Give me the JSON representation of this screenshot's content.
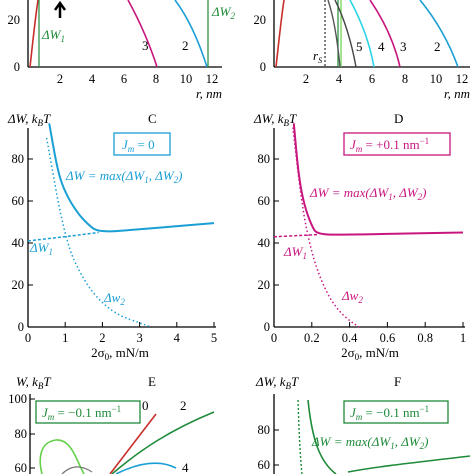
{
  "colors": {
    "cyan": "#1a9fd5",
    "magenta": "#c8167f",
    "green": "#1f8a3a",
    "lime": "#63d24a",
    "red": "#c82e2a",
    "darkgray": "#555555",
    "lightcyan": "#2ad4e6",
    "black": "#000000"
  },
  "top": {
    "left": {
      "y_tick_20": "20",
      "y_tick_0": "0",
      "x_ticks": [
        "2",
        "4",
        "6",
        "8",
        "10",
        "12"
      ],
      "x_label": "r, nm",
      "label_dw1": "ΔW",
      "label_dw1_sub": "1",
      "label_dw2": "ΔW",
      "label_dw2_sub": "2",
      "curve_3": "3",
      "curve_2": "2"
    },
    "right": {
      "y_tick_20": "20",
      "y_tick_0": "0",
      "x_ticks": [
        "2",
        "4",
        "6",
        "8",
        "10",
        "12"
      ],
      "x_label": "r, nm",
      "rs": "r",
      "rs_sub": "S",
      "curves": [
        "5",
        "4",
        "3",
        "2"
      ]
    }
  },
  "chart_data": [
    {
      "panel": "C",
      "type": "line",
      "ylabel": "ΔW, kBT",
      "xlabel": "2σ0, mN/m",
      "xlim": [
        0,
        5
      ],
      "ylim": [
        0,
        90
      ],
      "x_ticks": [
        "0",
        "1",
        "2",
        "3",
        "4",
        "5"
      ],
      "y_ticks": [
        "0",
        "20",
        "40",
        "60",
        "80"
      ],
      "legend": "Jm = 0",
      "series": [
        {
          "name": "ΔW = max(ΔW1, ΔW2)",
          "x": [
            0.57,
            0.8,
            1.0,
            1.3,
            1.6,
            1.9,
            3.0,
            4.0,
            5.0
          ],
          "y": [
            97,
            74,
            64,
            55,
            49,
            45,
            46.5,
            48,
            49.5
          ]
        },
        {
          "name": "ΔW1",
          "x": [
            0,
            1.0,
            1.9
          ],
          "y": [
            41,
            43,
            45
          ]
        },
        {
          "name": "ΔW2",
          "x": [
            0.5,
            1.0,
            1.5,
            2.0,
            2.5,
            3.0,
            3.3
          ],
          "y": [
            90,
            41,
            22,
            11,
            5,
            2,
            0
          ]
        }
      ]
    },
    {
      "panel": "D",
      "type": "line",
      "ylabel": "ΔW, kBT",
      "xlabel": "2σ0, mN/m",
      "xlim": [
        0,
        1
      ],
      "ylim": [
        0,
        90
      ],
      "x_ticks": [
        "0",
        "0.2",
        "0.4",
        "0.6",
        "0.8",
        "1"
      ],
      "y_ticks": [
        "0",
        "20",
        "40",
        "60",
        "80"
      ],
      "legend": "Jm = +0.1 nm−1",
      "series": [
        {
          "name": "ΔW = max(ΔW1, ΔW2)",
          "x": [
            0.105,
            0.13,
            0.16,
            0.2,
            0.23,
            0.4,
            0.7,
            1.0
          ],
          "y": [
            97,
            72,
            58,
            48,
            44,
            44,
            44.5,
            45
          ]
        },
        {
          "name": "ΔW1",
          "x": [
            0,
            0.12,
            0.23
          ],
          "y": [
            43,
            43.5,
            44
          ]
        },
        {
          "name": "ΔW2",
          "x": [
            0.1,
            0.15,
            0.2,
            0.25,
            0.3,
            0.35,
            0.4,
            0.45
          ],
          "y": [
            95,
            56,
            35,
            22,
            13,
            7,
            3,
            0
          ]
        }
      ]
    }
  ],
  "panelC": {
    "letter": "C",
    "legend_J": "J",
    "legend_m": "m",
    "legend_rest": " = 0",
    "eq": "ΔW = max(ΔW",
    "eq_sub1": "1",
    "eq_mid": ", ΔW",
    "eq_sub2": "2",
    "eq_end": ")",
    "w1": "ΔW",
    "w1_sub": "1",
    "w2": "Δw",
    "w2_sub": "2",
    "ylab_a": "ΔW, k",
    "ylab_b": "B",
    "ylab_c": "T",
    "xlab_a": "2σ",
    "xlab_b": "0",
    "xlab_c": ", mN/m"
  },
  "panelD": {
    "letter": "D",
    "legend_J": "J",
    "legend_m": "m",
    "legend_rest": " = +0.1 nm",
    "legend_sup": "−1",
    "eq": "ΔW = max(ΔW",
    "eq_sub1": "1",
    "eq_mid": ", ΔW",
    "eq_sub2": "2",
    "eq_end": ")",
    "w1": "ΔW",
    "w1_sub": "1",
    "w2": "Δw",
    "w2_sub": "2",
    "ylab_a": "ΔW, k",
    "ylab_b": "B",
    "ylab_c": "T",
    "xlab_a": "2σ",
    "xlab_b": "0",
    "xlab_c": ", mN/m"
  },
  "panelE": {
    "letter": "E",
    "ylab_a": "W, k",
    "ylab_b": "B",
    "ylab_c": "T",
    "y_ticks": [
      "100",
      "80",
      "60"
    ],
    "legend_J": "J",
    "legend_m": "m",
    "legend_rest": " = −0.1 nm",
    "legend_sup": "−1",
    "curves": [
      "0",
      "2",
      "4"
    ]
  },
  "panelF": {
    "letter": "F",
    "ylab_a": "ΔW, k",
    "ylab_b": "B",
    "ylab_c": "T",
    "y_ticks": [
      "80",
      "60"
    ],
    "legend_J": "J",
    "legend_m": "m",
    "legend_rest": " = −0.1 nm",
    "legend_sup": "−1",
    "eq": "ΔW = max(ΔW",
    "eq_sub1": "1",
    "eq_mid": ", ΔW",
    "eq_sub2": "2",
    "eq_end": ")"
  }
}
